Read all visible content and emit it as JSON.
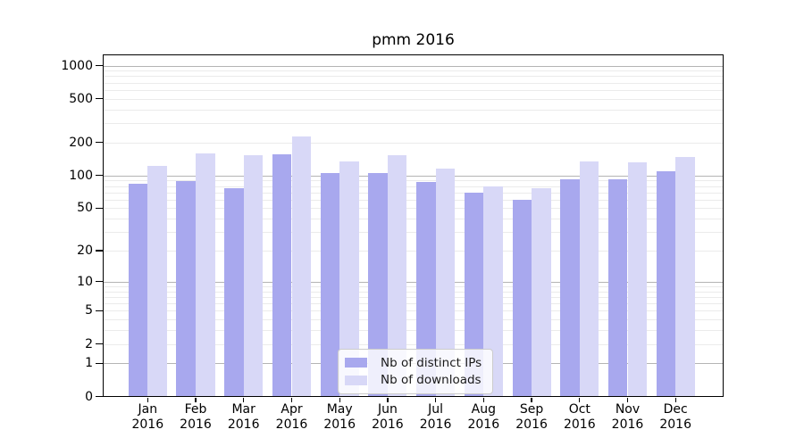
{
  "title": "pmm 2016",
  "chart_data": {
    "type": "bar",
    "title": "pmm 2016",
    "x_months": [
      "Jan",
      "Feb",
      "Mar",
      "Apr",
      "May",
      "Jun",
      "Jul",
      "Aug",
      "Sep",
      "Oct",
      "Nov",
      "Dec"
    ],
    "x_year": "2016",
    "series": [
      {
        "name": "Nb of distinct IPs",
        "color": "#a8a8ee",
        "values": [
          84,
          88,
          77,
          155,
          106,
          106,
          87,
          69,
          60,
          93,
          92,
          109
        ]
      },
      {
        "name": "Nb of downloads",
        "color": "#d8d8f7",
        "values": [
          122,
          160,
          152,
          225,
          134,
          154,
          116,
          80,
          77,
          135,
          132,
          147
        ]
      }
    ],
    "yscale": "log1p",
    "y_ticks": [
      0,
      1,
      2,
      5,
      10,
      20,
      50,
      100,
      200,
      500,
      1000
    ],
    "y_major_gridlines": [
      1,
      10,
      100,
      1000
    ],
    "y_minor_gridlines": [
      2,
      3,
      4,
      5,
      6,
      7,
      8,
      9,
      20,
      30,
      40,
      50,
      60,
      70,
      80,
      90,
      200,
      300,
      400,
      500,
      600,
      700,
      800,
      900
    ],
    "ylim": [
      0,
      1260
    ],
    "grid": true,
    "legend_position": "lower center"
  }
}
